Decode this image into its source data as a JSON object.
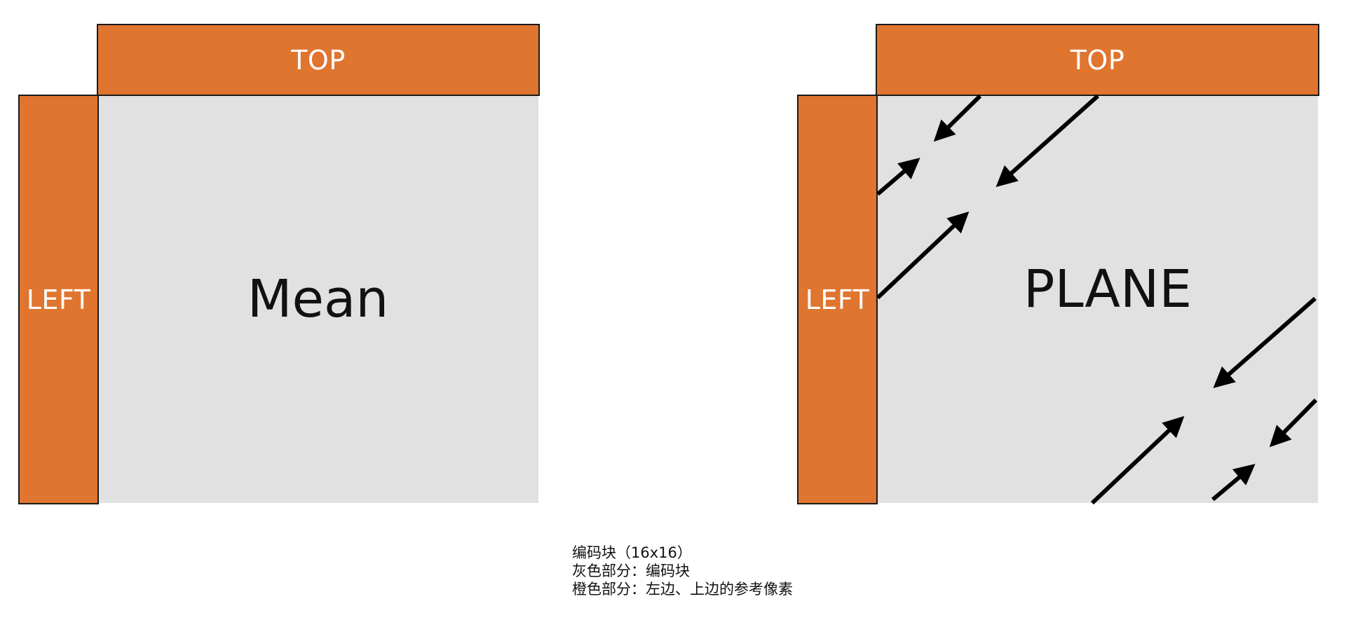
{
  "left_panel": {
    "top_label": "TOP",
    "left_label": "LEFT",
    "center_label": "Mean"
  },
  "right_panel": {
    "top_label": "TOP",
    "left_label": "LEFT",
    "center_label": "PLANE"
  },
  "caption": {
    "line1": "编码块（16x16）",
    "line2": "灰色部分：编码块",
    "line3": "橙色部分：左边、上边的参考像素"
  },
  "colors": {
    "reference_pixels": "#e07530",
    "coding_block": "#e1e1e1",
    "arrows": "#000000"
  }
}
